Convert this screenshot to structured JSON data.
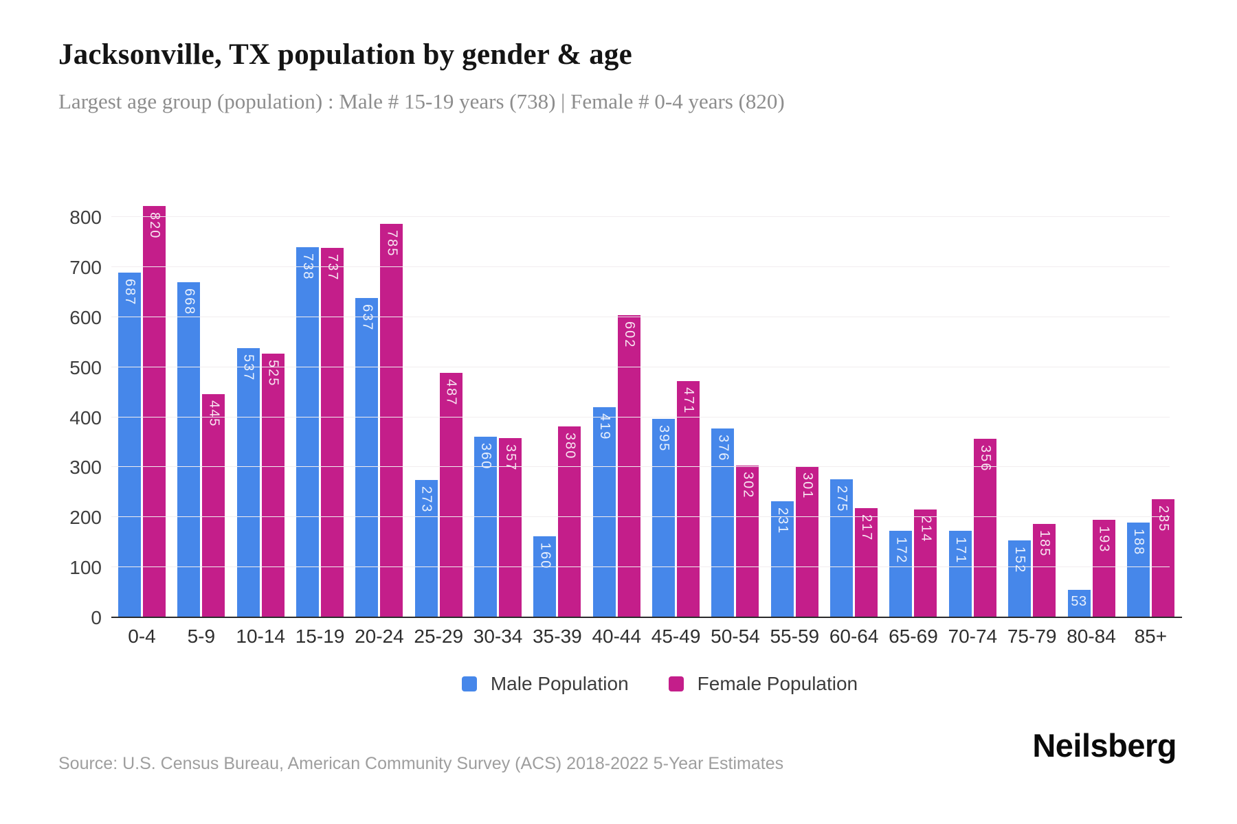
{
  "header": {
    "title": "Jacksonville, TX population by gender & age",
    "subtitle": "Largest age group (population) : Male # 15-19 years (738) | Female # 0-4 years (820)"
  },
  "chart_data": {
    "type": "bar",
    "title": "Jacksonville, TX population by gender & age",
    "categories": [
      "0-4",
      "5-9",
      "10-14",
      "15-19",
      "20-24",
      "25-29",
      "30-34",
      "35-39",
      "40-44",
      "45-49",
      "50-54",
      "55-59",
      "60-64",
      "65-69",
      "70-74",
      "75-79",
      "80-84",
      "85+"
    ],
    "series": [
      {
        "name": "Male Population",
        "color": "#4687ea",
        "values": [
          687,
          668,
          537,
          738,
          637,
          273,
          360,
          160,
          419,
          395,
          376,
          231,
          275,
          172,
          171,
          152,
          53,
          188
        ]
      },
      {
        "name": "Female Population",
        "color": "#c41e8a",
        "values": [
          820,
          445,
          525,
          737,
          785,
          487,
          357,
          380,
          602,
          471,
          302,
          301,
          217,
          214,
          356,
          185,
          193,
          235
        ]
      }
    ],
    "xlabel": "",
    "ylabel": "",
    "ylim": [
      0,
      800
    ],
    "ytick_step": 100,
    "yticks": [
      0,
      100,
      200,
      300,
      400,
      500,
      600,
      700,
      800
    ],
    "grid": "horizontal",
    "bar_value_labels": "inside-top, rotated 90deg, white",
    "legend_position": "bottom-center"
  },
  "legend": {
    "male_label": "Male Population",
    "female_label": "Female Population"
  },
  "footer": {
    "source": "Source: U.S. Census Bureau, American Community Survey (ACS) 2018-2022 5-Year Estimates",
    "brand": "Neilsberg"
  },
  "colors": {
    "male": "#4687ea",
    "female": "#c41e8a",
    "gridline": "#f1edef",
    "axis_line": "#2a2a2a",
    "title_text": "#141414",
    "subtitle_text": "#8d8d8d",
    "tick_text": "#3f3f3f",
    "source_text": "#9e9e9e"
  }
}
